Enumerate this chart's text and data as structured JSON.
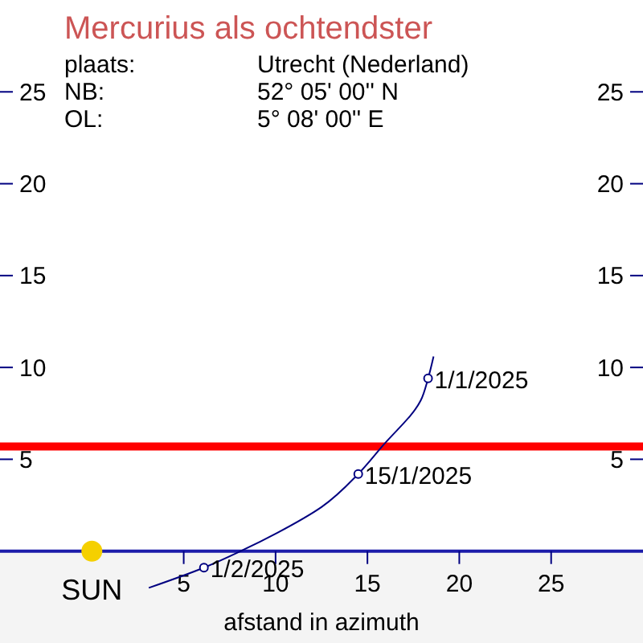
{
  "chart_data": {
    "type": "line",
    "title": "Mercurius als ochtendster",
    "xlabel": "afstand in azimuth",
    "annotations": [
      "plaats:",
      "Utrecht (Nederland)",
      "NB:",
      "52° 05' 00'' N",
      "OL:",
      "5° 08' 00'' E",
      {
        "text": "1/1/2025",
        "x": 18.3,
        "y": 9.4
      },
      {
        "text": "15/1/2025",
        "x": 14.5,
        "y": 4.2
      },
      {
        "text": "1/2/2025",
        "x": 6.1,
        "y": -0.9
      }
    ],
    "xlim": [
      -5,
      30
    ],
    "xticks": [
      5,
      10,
      15,
      20,
      25
    ],
    "ylim": [
      -5,
      30
    ],
    "yticks": [
      5,
      10,
      15,
      20,
      25
    ],
    "y2lim": [
      -5,
      30
    ],
    "y2ticks": [
      5,
      10,
      15,
      20,
      25
    ],
    "ref_lines": [
      {
        "axis": "y",
        "value": 5.7,
        "color": "#ff0000"
      }
    ],
    "grid": false,
    "series": [
      {
        "color": "#000080",
        "marker": "none",
        "x": [
          3.1,
          6.1,
          8.1,
          10.1,
          12.5,
          14.5,
          15.8,
          17.9,
          18.3,
          18.6
        ],
        "values": [
          -2.0,
          -0.9,
          0,
          1.0,
          2.4,
          4.2,
          5.7,
          8.2,
          9.4,
          10.6
        ]
      },
      {
        "type": "scatter",
        "color": "#000080",
        "marker": "circle",
        "x": [
          18.3,
          14.5,
          6.1
        ],
        "values": [
          9.4,
          4.2,
          -0.9
        ]
      },
      {
        "type": "scatter",
        "name": "SUN",
        "color": "#f5d000",
        "marker": "circle",
        "x": [
          0
        ],
        "values": [
          0
        ]
      }
    ]
  }
}
